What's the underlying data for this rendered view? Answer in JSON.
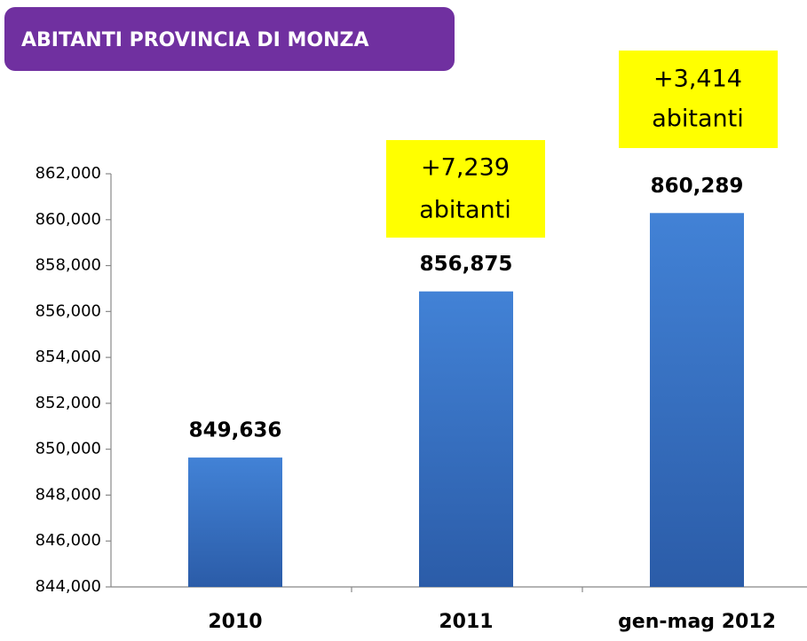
{
  "chart_data": {
    "type": "bar",
    "title": "ABITANTI PROVINCIA DI MONZA",
    "categories": [
      "2010",
      "2011",
      "gen-mag 2012"
    ],
    "values": [
      849636,
      856875,
      860289
    ],
    "value_labels": [
      "849,636",
      "856,875",
      "860,289"
    ],
    "color": "#3a74c8",
    "ylim": [
      844000,
      862000
    ],
    "yticks": [
      {
        "value": 844000,
        "label": "844,000"
      },
      {
        "value": 846000,
        "label": "846,000"
      },
      {
        "value": 848000,
        "label": "848,000"
      },
      {
        "value": 850000,
        "label": "850,000"
      },
      {
        "value": 852000,
        "label": "852,000"
      },
      {
        "value": 854000,
        "label": "854,000"
      },
      {
        "value": 856000,
        "label": "856,000"
      },
      {
        "value": 858000,
        "label": "858,000"
      },
      {
        "value": 860000,
        "label": "860,000"
      },
      {
        "value": 862000,
        "label": "862,000"
      }
    ],
    "grid": false,
    "annotations": [
      {
        "lines": [
          "+7,239",
          "abitanti"
        ]
      },
      {
        "lines": [
          "+3,414",
          "abitanti"
        ]
      }
    ]
  }
}
